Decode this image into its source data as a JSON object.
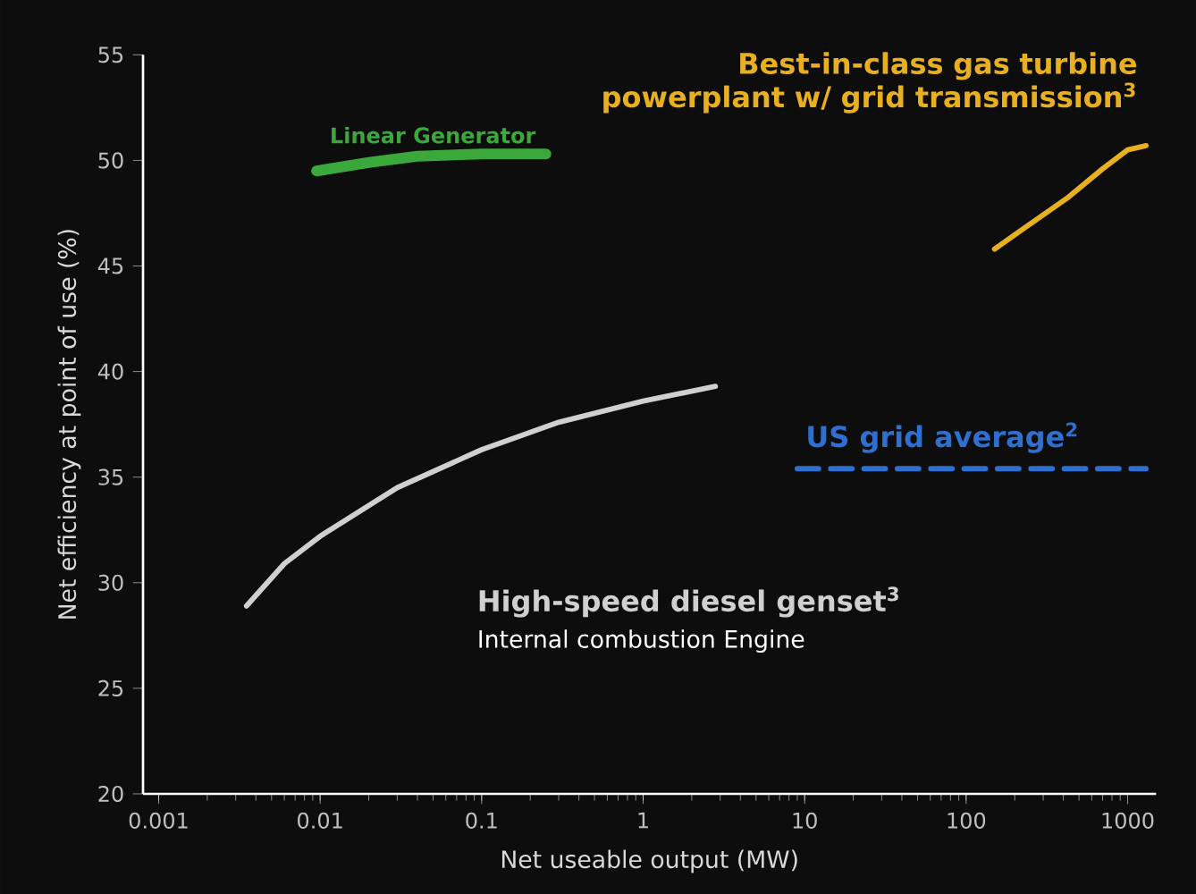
{
  "chart_data": {
    "type": "line",
    "xlabel": "Net useable output (MW)",
    "ylabel": "Net efficiency at point of use (%)",
    "log": "x",
    "xlim": [
      0.0008,
      1500
    ],
    "xticks": [
      0.001,
      0.01,
      0.1,
      1,
      10,
      100,
      1000
    ],
    "ylim": [
      20,
      55
    ],
    "yticks": [
      20,
      25,
      30,
      35,
      40,
      45,
      50,
      55
    ],
    "series": [
      {
        "name": "Linear Generator",
        "color": "#3aa83a",
        "x": [
          0.0095,
          0.02,
          0.04,
          0.1,
          0.25
        ],
        "values": [
          49.5,
          49.9,
          50.2,
          50.3,
          50.3
        ]
      },
      {
        "name": "Best-in-class gas turbine powerplant w/ grid transmission$^{3}$",
        "color": "#e8b020",
        "x": [
          150,
          250,
          420,
          700,
          1000,
          1300
        ],
        "values": [
          45.8,
          47.0,
          48.2,
          49.6,
          50.5,
          50.7
        ]
      },
      {
        "name": "US grid average$^{2}$",
        "color": "#2f6fd0",
        "line_style": "dashed",
        "x": [
          9,
          1300
        ],
        "values": [
          35.4,
          35.4
        ]
      },
      {
        "name": "High-speed diesel genset$^{3}$",
        "color": "#d0d0d0",
        "x": [
          0.0035,
          0.006,
          0.01,
          0.03,
          0.1,
          0.3,
          1,
          2.8
        ],
        "values": [
          28.9,
          30.9,
          32.2,
          34.5,
          36.3,
          37.6,
          38.6,
          39.3
        ]
      }
    ],
    "annotations": [
      "Internal combustion Engine"
    ]
  }
}
